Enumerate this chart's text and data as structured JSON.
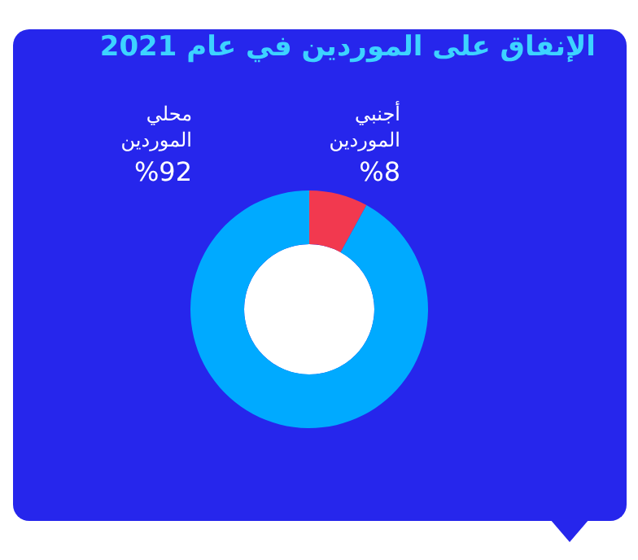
{
  "chart_data": {
    "type": "donut",
    "title": "الإنفاق على الموردين في عام 2021",
    "categories": [
      "أجنبي الموردين",
      "محلي الموردين"
    ],
    "values": [
      8,
      92
    ],
    "colors": [
      "#f2394f",
      "#00aaff"
    ],
    "value_labels": [
      "%8",
      "%92"
    ]
  }
}
